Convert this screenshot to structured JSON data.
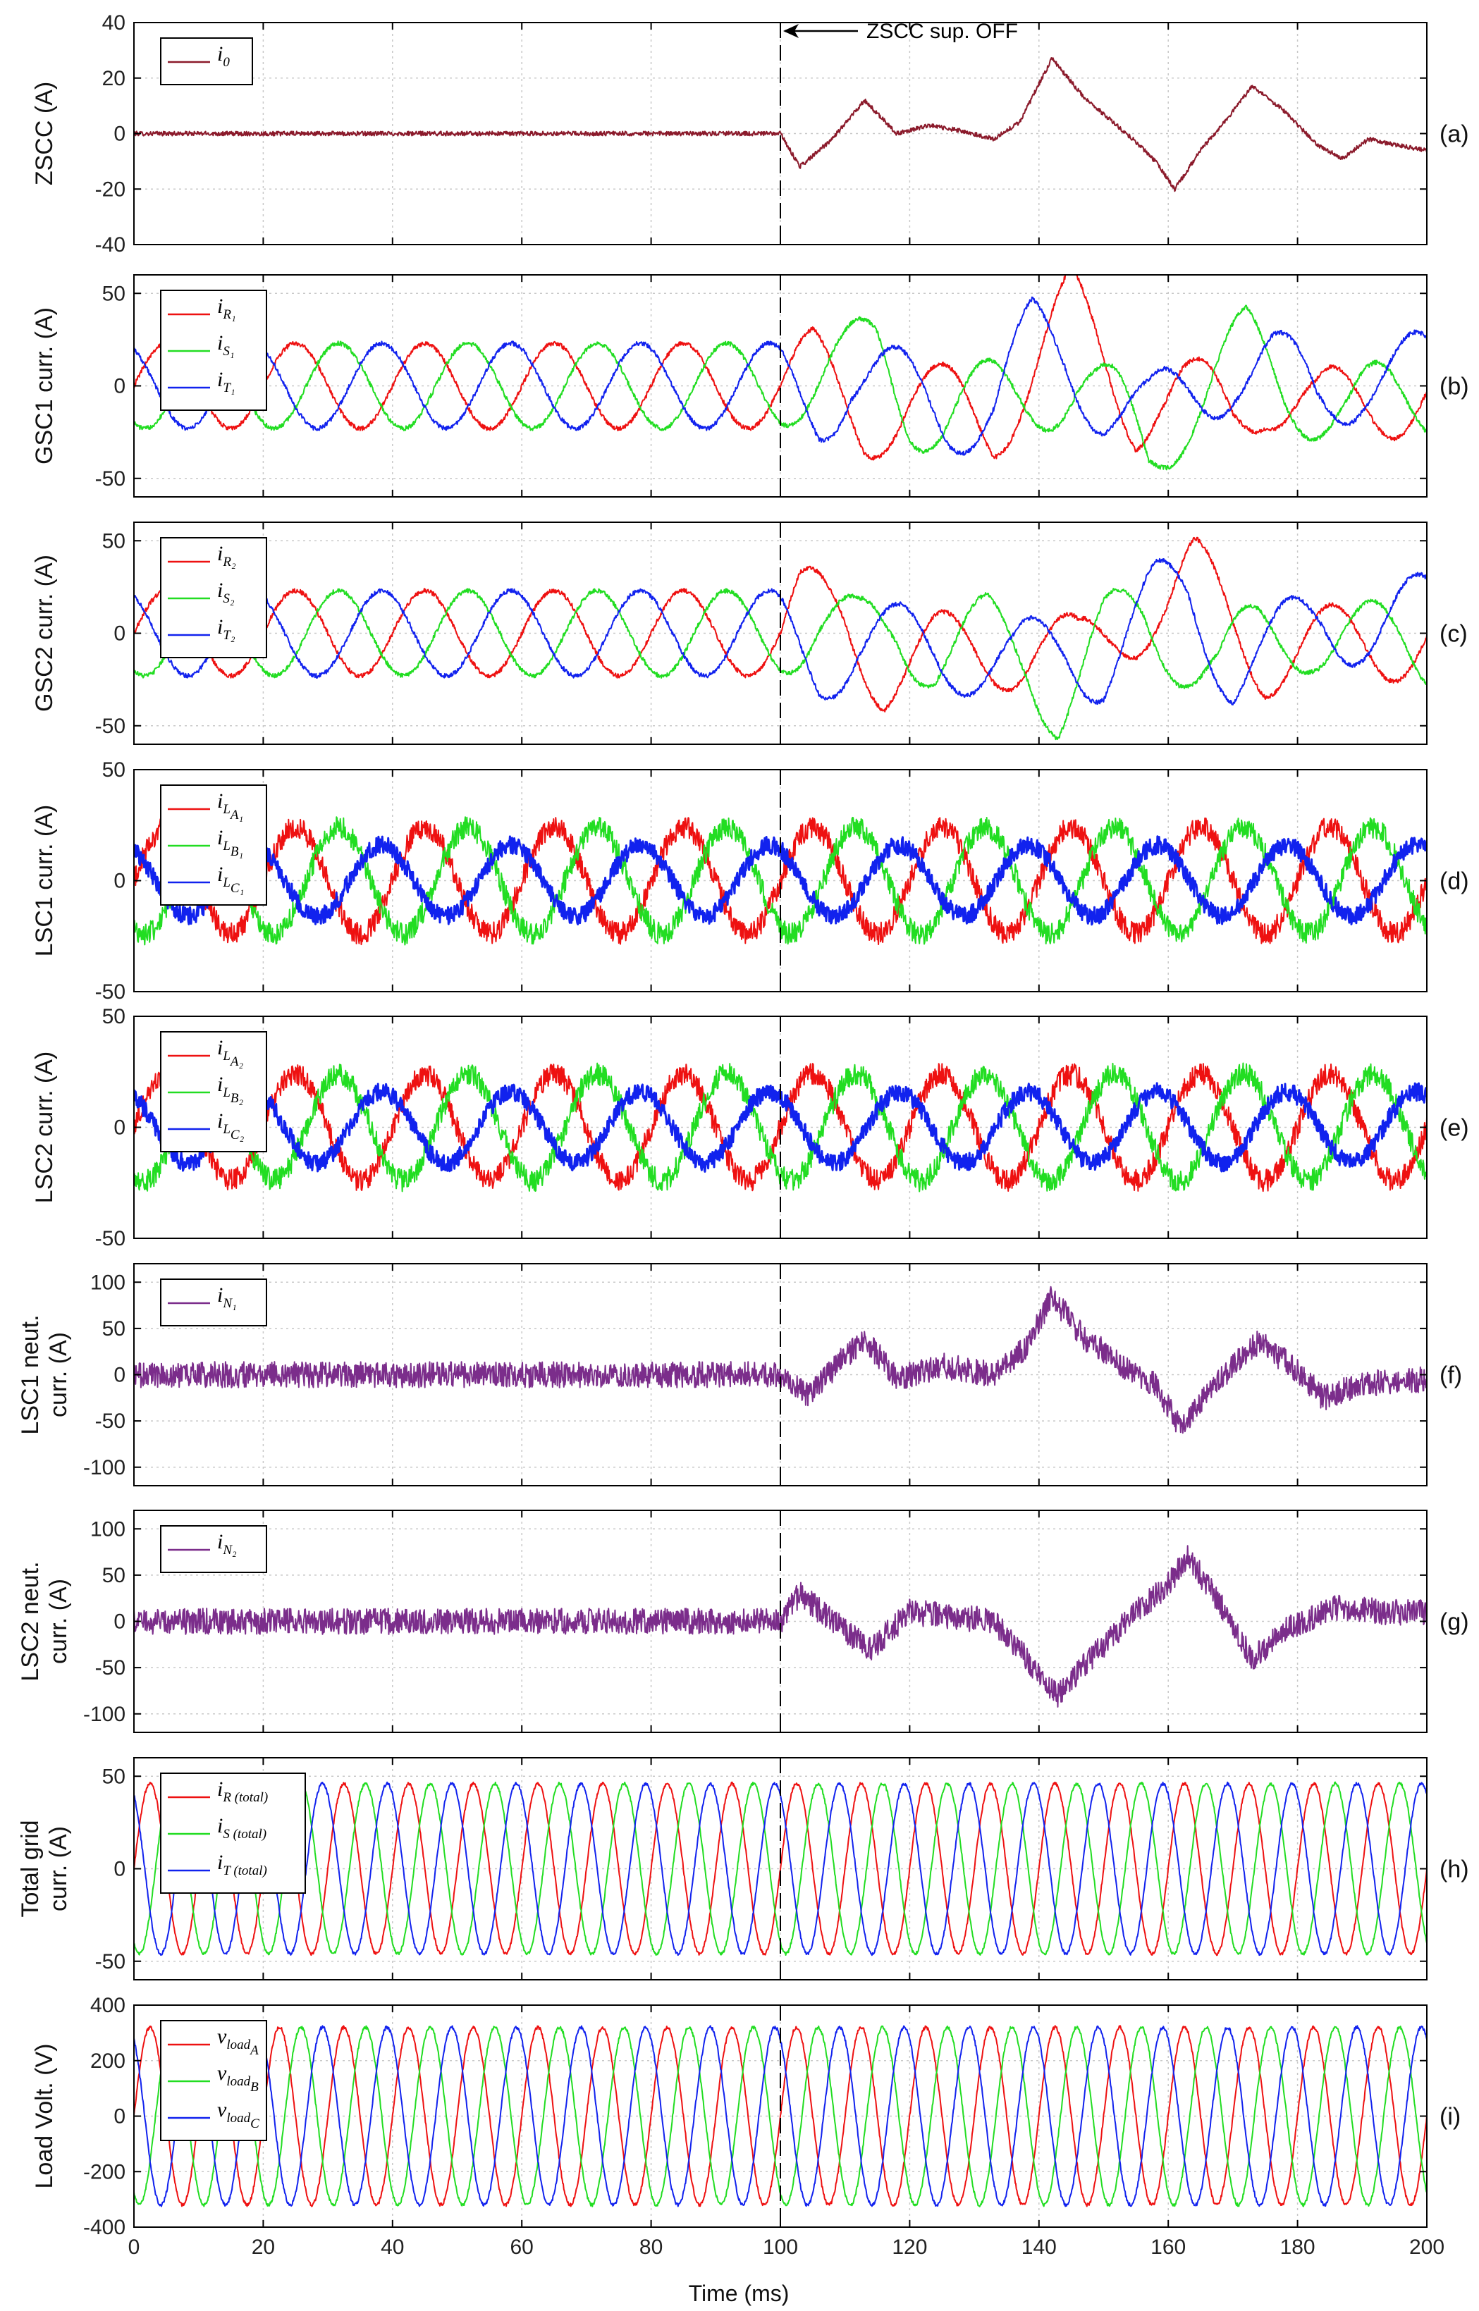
{
  "chart_data": [
    {
      "id": "a",
      "type": "line",
      "tag": "(a)",
      "ylabel_lines": [
        "ZSCC (A)"
      ],
      "xlim": [
        0,
        200
      ],
      "ylim": [
        -40,
        40
      ],
      "yticks": [
        -40,
        -20,
        0,
        20,
        40
      ],
      "grid": true,
      "legend_position": "top-left",
      "series": [
        {
          "legend": {
            "main": "i",
            "sub": "0"
          },
          "color": "#8b1a2b",
          "noise": 0.8,
          "points": [
            [
              0,
              0
            ],
            [
              100,
              0
            ],
            [
              103,
              -12
            ],
            [
              108,
              -2
            ],
            [
              113,
              12
            ],
            [
              118,
              0
            ],
            [
              123,
              3
            ],
            [
              128,
              1
            ],
            [
              133,
              -2
            ],
            [
              137,
              4
            ],
            [
              142,
              27
            ],
            [
              147,
              13
            ],
            [
              151,
              5
            ],
            [
              155,
              -3
            ],
            [
              158,
              -10
            ],
            [
              161,
              -20
            ],
            [
              165,
              -6
            ],
            [
              169,
              5
            ],
            [
              173,
              17
            ],
            [
              178,
              8
            ],
            [
              183,
              -4
            ],
            [
              187,
              -9
            ],
            [
              191,
              -2
            ],
            [
              195,
              -4
            ],
            [
              200,
              -6
            ]
          ]
        }
      ]
    },
    {
      "id": "b",
      "type": "line",
      "tag": "(b)",
      "ylabel_lines": [
        "GSC1 curr. (A)"
      ],
      "xlim": [
        0,
        200
      ],
      "ylim": [
        -60,
        60
      ],
      "yticks": [
        -50,
        0,
        50
      ],
      "grid": true,
      "legend_position": "top-left",
      "series": [
        {
          "legend": {
            "main": "i",
            "sub": "R₁"
          },
          "color": "#ee1111",
          "amplitude": 23,
          "phase_deg": 0,
          "noise": 1.2,
          "disturbance": [
            [
              100,
              0
            ],
            [
              105,
              8
            ],
            [
              113,
              -18
            ],
            [
              120,
              -10
            ],
            [
              128,
              -12
            ],
            [
              133,
              -20
            ],
            [
              139,
              10
            ],
            [
              145,
              42
            ],
            [
              150,
              15
            ],
            [
              155,
              -12
            ],
            [
              158,
              -6
            ],
            [
              162,
              -5
            ],
            [
              170,
              -15
            ],
            [
              175,
              0
            ],
            [
              183,
              -15
            ],
            [
              190,
              -8
            ],
            [
              200,
              -3
            ]
          ]
        },
        {
          "legend": {
            "main": "i",
            "sub": "S₁"
          },
          "color": "#22dd22",
          "amplitude": 23,
          "phase_deg": -120,
          "noise": 1.2,
          "disturbance": [
            [
              100,
              0
            ],
            [
              110,
              10
            ],
            [
              115,
              18
            ],
            [
              120,
              -10
            ],
            [
              125,
              -16
            ],
            [
              133,
              -8
            ],
            [
              140,
              -2
            ],
            [
              146,
              2
            ],
            [
              152,
              -14
            ],
            [
              157,
              -38
            ],
            [
              163,
              -10
            ],
            [
              168,
              8
            ],
            [
              172,
              20
            ],
            [
              178,
              0
            ],
            [
              188,
              -15
            ],
            [
              194,
              -8
            ],
            [
              200,
              -5
            ]
          ]
        },
        {
          "legend": {
            "main": "i",
            "sub": "T₁"
          },
          "color": "#1122ee",
          "amplitude": 23,
          "phase_deg": 120,
          "noise": 1.2,
          "disturbance": [
            [
              100,
              0
            ],
            [
              106,
              -12
            ],
            [
              111,
              8
            ],
            [
              118,
              -2
            ],
            [
              126,
              -15
            ],
            [
              133,
              -10
            ],
            [
              139,
              25
            ],
            [
              144,
              15
            ],
            [
              150,
              -6
            ],
            [
              157,
              -18
            ],
            [
              163,
              -4
            ],
            [
              170,
              10
            ],
            [
              176,
              10
            ],
            [
              183,
              -6
            ],
            [
              190,
              6
            ],
            [
              200,
              6
            ]
          ]
        }
      ]
    },
    {
      "id": "c",
      "type": "line",
      "tag": "(c)",
      "ylabel_lines": [
        "GSC2 curr. (A)"
      ],
      "xlim": [
        0,
        200
      ],
      "ylim": [
        -60,
        60
      ],
      "yticks": [
        -50,
        0,
        50
      ],
      "grid": true,
      "legend_position": "top-left",
      "series": [
        {
          "legend": {
            "main": "i",
            "sub": "R₂"
          },
          "color": "#ee1111",
          "amplitude": 23,
          "phase_deg": 0,
          "noise": 1.2,
          "disturbance": [
            [
              100,
              0
            ],
            [
              103,
              14
            ],
            [
              110,
              6
            ],
            [
              116,
              -20
            ],
            [
              124,
              -12
            ],
            [
              132,
              -8
            ],
            [
              140,
              -8
            ],
            [
              146,
              -14
            ],
            [
              152,
              6
            ],
            [
              160,
              16
            ],
            [
              164,
              30
            ],
            [
              170,
              6
            ],
            [
              175,
              -12
            ],
            [
              182,
              -10
            ],
            [
              190,
              -4
            ],
            [
              200,
              -2
            ]
          ]
        },
        {
          "legend": {
            "main": "i",
            "sub": "S₂"
          },
          "color": "#22dd22",
          "amplitude": 23,
          "phase_deg": -120,
          "noise": 1.2,
          "disturbance": [
            [
              100,
              0
            ],
            [
              106,
              6
            ],
            [
              112,
              -4
            ],
            [
              118,
              4
            ],
            [
              124,
              -10
            ],
            [
              132,
              -2
            ],
            [
              138,
              -14
            ],
            [
              143,
              -36
            ],
            [
              150,
              -2
            ],
            [
              156,
              6
            ],
            [
              162,
              -6
            ],
            [
              168,
              -18
            ],
            [
              174,
              -4
            ],
            [
              182,
              2
            ],
            [
              190,
              -5
            ],
            [
              200,
              -8
            ]
          ]
        },
        {
          "legend": {
            "main": "i",
            "sub": "T₂"
          },
          "color": "#1122ee",
          "amplitude": 23,
          "phase_deg": 120,
          "noise": 1.2,
          "disturbance": [
            [
              100,
              0
            ],
            [
              106,
              -16
            ],
            [
              112,
              -4
            ],
            [
              120,
              -8
            ],
            [
              128,
              -10
            ],
            [
              136,
              -18
            ],
            [
              144,
              -8
            ],
            [
              150,
              -16
            ],
            [
              158,
              16
            ],
            [
              163,
              20
            ],
            [
              170,
              -18
            ],
            [
              176,
              -10
            ],
            [
              184,
              8
            ],
            [
              192,
              4
            ],
            [
              200,
              10
            ]
          ]
        }
      ]
    },
    {
      "id": "d",
      "type": "line",
      "tag": "(d)",
      "ylabel_lines": [
        "LSC1 curr. (A)"
      ],
      "xlim": [
        0,
        200
      ],
      "ylim": [
        -50,
        50
      ],
      "yticks": [
        -50,
        0,
        50
      ],
      "grid": true,
      "legend_position": "top-left",
      "series": [
        {
          "legend": {
            "main": "i",
            "sub": "L",
            "sub2": "A₁"
          },
          "color": "#ee1111",
          "amplitude": 24,
          "phase_deg": 0,
          "noise": 5,
          "freq_hz": 50
        },
        {
          "legend": {
            "main": "i",
            "sub": "L",
            "sub2": "B₁"
          },
          "color": "#22dd22",
          "amplitude": 24,
          "phase_deg": -120,
          "noise": 5,
          "freq_hz": 50
        },
        {
          "legend": {
            "main": "i",
            "sub": "L",
            "sub2": "C₁"
          },
          "color": "#1122ee",
          "amplitude": 16,
          "phase_deg": 120,
          "noise": 4,
          "freq_hz": 50,
          "stroke": 3
        }
      ]
    },
    {
      "id": "e",
      "type": "line",
      "tag": "(e)",
      "ylabel_lines": [
        "LSC2 curr. (A)"
      ],
      "xlim": [
        0,
        200
      ],
      "ylim": [
        -50,
        50
      ],
      "yticks": [
        -50,
        0,
        50
      ],
      "grid": true,
      "legend_position": "top-left",
      "series": [
        {
          "legend": {
            "main": "i",
            "sub": "L",
            "sub2": "A₂"
          },
          "color": "#ee1111",
          "amplitude": 24,
          "phase_deg": 0,
          "noise": 5,
          "freq_hz": 50
        },
        {
          "legend": {
            "main": "i",
            "sub": "L",
            "sub2": "B₂"
          },
          "color": "#22dd22",
          "amplitude": 24,
          "phase_deg": -120,
          "noise": 5,
          "freq_hz": 50
        },
        {
          "legend": {
            "main": "i",
            "sub": "L",
            "sub2": "C₂"
          },
          "color": "#1122ee",
          "amplitude": 16,
          "phase_deg": 120,
          "noise": 4,
          "freq_hz": 50,
          "stroke": 3
        }
      ]
    },
    {
      "id": "f",
      "type": "line",
      "tag": "(f)",
      "ylabel_lines": [
        "LSC1 neut.",
        "curr. (A)"
      ],
      "xlim": [
        0,
        200
      ],
      "ylim": [
        -120,
        120
      ],
      "yticks": [
        -100,
        -50,
        0,
        50,
        100
      ],
      "grid": true,
      "legend_position": "top-left",
      "series": [
        {
          "legend": {
            "main": "i",
            "sub": "N₁"
          },
          "color": "#7b2d8b",
          "noise": 14,
          "points": [
            [
              0,
              0
            ],
            [
              100,
              0
            ],
            [
              104,
              -22
            ],
            [
              108,
              5
            ],
            [
              113,
              40
            ],
            [
              118,
              -5
            ],
            [
              125,
              10
            ],
            [
              133,
              0
            ],
            [
              138,
              30
            ],
            [
              142,
              85
            ],
            [
              147,
              40
            ],
            [
              153,
              10
            ],
            [
              158,
              -10
            ],
            [
              162,
              -60
            ],
            [
              166,
              -20
            ],
            [
              170,
              10
            ],
            [
              174,
              35
            ],
            [
              179,
              10
            ],
            [
              184,
              -25
            ],
            [
              190,
              -10
            ],
            [
              200,
              -5
            ]
          ]
        }
      ]
    },
    {
      "id": "g",
      "type": "line",
      "tag": "(g)",
      "ylabel_lines": [
        "LSC2 neut.",
        "curr. (A)"
      ],
      "xlim": [
        0,
        200
      ],
      "ylim": [
        -120,
        120
      ],
      "yticks": [
        -100,
        -50,
        0,
        50,
        100
      ],
      "grid": true,
      "legend_position": "top-left",
      "series": [
        {
          "legend": {
            "main": "i",
            "sub": "N₂"
          },
          "color": "#7b2d8b",
          "noise": 14,
          "points": [
            [
              0,
              0
            ],
            [
              100,
              0
            ],
            [
              103,
              30
            ],
            [
              108,
              0
            ],
            [
              114,
              -30
            ],
            [
              120,
              10
            ],
            [
              127,
              5
            ],
            [
              133,
              0
            ],
            [
              138,
              -40
            ],
            [
              143,
              -80
            ],
            [
              148,
              -40
            ],
            [
              155,
              10
            ],
            [
              160,
              40
            ],
            [
              163,
              70
            ],
            [
              168,
              20
            ],
            [
              173,
              -40
            ],
            [
              178,
              -10
            ],
            [
              186,
              15
            ],
            [
              194,
              10
            ],
            [
              200,
              10
            ]
          ]
        }
      ]
    },
    {
      "id": "h",
      "type": "line",
      "tag": "(h)",
      "ylabel_lines": [
        "Total grid",
        "curr. (A)"
      ],
      "xlim": [
        0,
        200
      ],
      "ylim": [
        -60,
        60
      ],
      "yticks": [
        -50,
        0,
        50
      ],
      "grid": true,
      "legend_position": "top-left",
      "series": [
        {
          "legend": {
            "main": "i",
            "sub": "R (total)"
          },
          "color": "#ee1111",
          "amplitude": 46,
          "phase_deg": 0,
          "noise": 0.8,
          "freq_hz": 100
        },
        {
          "legend": {
            "main": "i",
            "sub": "S (total)"
          },
          "color": "#22dd22",
          "amplitude": 46,
          "phase_deg": -120,
          "noise": 0.8,
          "freq_hz": 100
        },
        {
          "legend": {
            "main": "i",
            "sub": "T (total)"
          },
          "color": "#1122ee",
          "amplitude": 46,
          "phase_deg": 120,
          "noise": 0.8,
          "freq_hz": 100
        }
      ]
    },
    {
      "id": "i",
      "type": "line",
      "tag": "(i)",
      "ylabel_lines": [
        "Load Volt. (V)"
      ],
      "xlim": [
        0,
        200
      ],
      "ylim": [
        -400,
        400
      ],
      "yticks": [
        -400,
        -200,
        0,
        200,
        400
      ],
      "grid": true,
      "legend_position": "top-left",
      "series": [
        {
          "legend": {
            "main": "v",
            "sub": "load",
            "sub2": "A"
          },
          "color": "#ee1111",
          "amplitude": 320,
          "phase_deg": 0,
          "noise": 6,
          "freq_hz": 100
        },
        {
          "legend": {
            "main": "v",
            "sub": "load",
            "sub2": "B"
          },
          "color": "#22dd22",
          "amplitude": 320,
          "phase_deg": -120,
          "noise": 6,
          "freq_hz": 100
        },
        {
          "legend": {
            "main": "v",
            "sub": "load",
            "sub2": "C"
          },
          "color": "#1122ee",
          "amplitude": 320,
          "phase_deg": 120,
          "noise": 6,
          "freq_hz": 100
        }
      ]
    }
  ],
  "shared_x": {
    "xlabel": "Time (ms)",
    "xticks": [
      0,
      20,
      40,
      60,
      80,
      100,
      120,
      140,
      160,
      180,
      200
    ]
  },
  "event": {
    "x": 100,
    "label": "ZSCC sup. OFF"
  },
  "grid_color": "#c8c8c8"
}
